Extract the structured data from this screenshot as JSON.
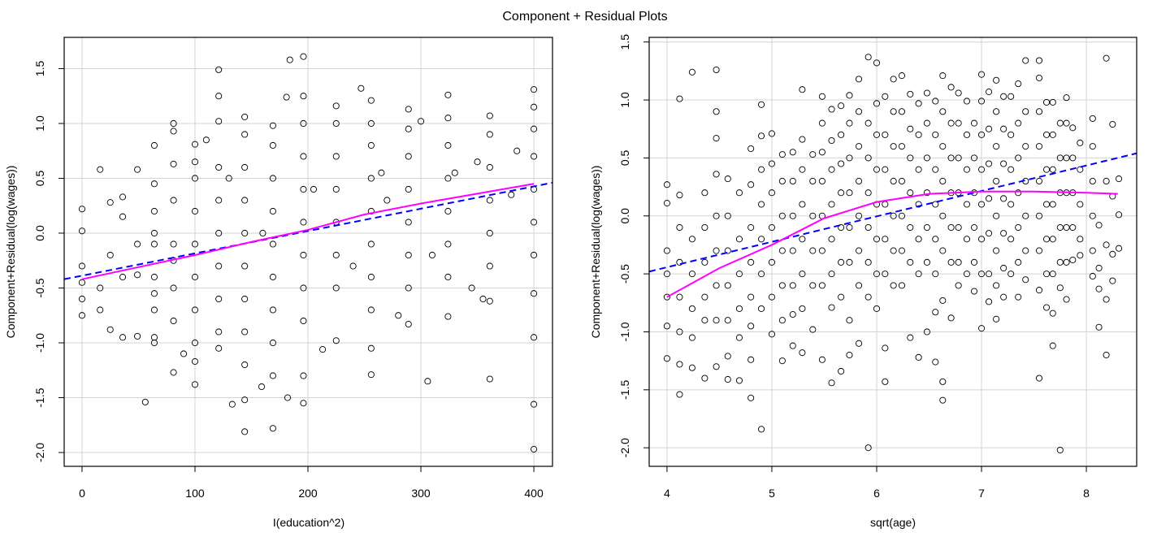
{
  "title": "Component + Residual Plots",
  "colors": {
    "points": "#000000",
    "linear_fit": "#0000ff",
    "smooth_fit": "#ff00ff",
    "grid": "#d3d3d3"
  },
  "chart_data": [
    {
      "type": "scatter",
      "xlabel": "I(education^2)",
      "ylabel": "Component+Residual(log(wages))",
      "xlim": [
        -15.8,
        416.5
      ],
      "ylim": [
        -2.126,
        1.785
      ],
      "xticks": [
        0,
        100,
        200,
        300,
        400
      ],
      "xtick_labels": [
        "0",
        "100",
        "200",
        "300",
        "400"
      ],
      "yticks": [
        -2.0,
        -1.5,
        -1.0,
        -0.5,
        0.0,
        0.5,
        1.0,
        1.5
      ],
      "ytick_labels": [
        "-2.0",
        "-1.5",
        "-1.0",
        "-0.5",
        "0.0",
        "0.5",
        "1.0",
        "1.5"
      ],
      "grid": true,
      "columns": [
        {
          "x": 0,
          "y": [
            -0.75,
            -0.45,
            0.22,
            -0.3,
            0.02,
            -0.6
          ]
        },
        {
          "x": 16,
          "y": [
            0.58,
            -0.5,
            -0.7
          ]
        },
        {
          "x": 25,
          "y": [
            0.28,
            -0.2,
            -0.88
          ]
        },
        {
          "x": 36,
          "y": [
            0.33,
            -0.95,
            -0.4,
            0.15
          ]
        },
        {
          "x": 49,
          "y": [
            0.58,
            -0.94,
            -0.1,
            -0.38
          ]
        },
        {
          "x": 64,
          "y": [
            0.8,
            0.45,
            0.2,
            -0.1,
            -0.4,
            -0.7,
            -0.95,
            -1.0,
            0.0,
            -0.55
          ]
        },
        {
          "x": 81,
          "y": [
            1.0,
            0.63,
            0.3,
            -0.1,
            -0.5,
            -0.8,
            -1.27,
            0.93,
            -0.25
          ]
        },
        {
          "x": 100,
          "y": [
            0.81,
            0.5,
            0.2,
            -0.1,
            -0.4,
            -0.7,
            -1.0,
            -1.38,
            -1.17,
            0.65
          ]
        },
        {
          "x": 121,
          "y": [
            1.49,
            1.25,
            1.02,
            0.6,
            0.3,
            0.0,
            -0.3,
            -0.6,
            -0.9,
            -1.05
          ]
        },
        {
          "x": 144,
          "y": [
            1.06,
            0.9,
            0.6,
            0.3,
            0.0,
            -0.3,
            -0.6,
            -0.9,
            -1.2,
            -1.52,
            -1.81
          ]
        },
        {
          "x": 169,
          "y": [
            0.98,
            0.8,
            0.5,
            0.2,
            -0.1,
            -0.4,
            -0.7,
            -1.0,
            -1.3,
            -1.78
          ]
        },
        {
          "x": 196,
          "y": [
            1.61,
            1.25,
            1.0,
            0.7,
            0.4,
            0.1,
            -0.2,
            -0.5,
            -0.8,
            -1.3,
            -1.55
          ]
        },
        {
          "x": 225,
          "y": [
            1.16,
            1.0,
            0.7,
            0.4,
            0.1,
            -0.2,
            -0.5,
            -0.98
          ]
        },
        {
          "x": 256,
          "y": [
            1.21,
            1.0,
            0.8,
            0.5,
            0.2,
            -0.1,
            -0.4,
            -0.7,
            -1.05,
            -1.29
          ]
        },
        {
          "x": 289,
          "y": [
            1.13,
            0.95,
            0.7,
            0.4,
            0.1,
            -0.2,
            -0.5,
            -0.83
          ]
        },
        {
          "x": 324,
          "y": [
            1.26,
            1.05,
            0.8,
            0.5,
            0.2,
            -0.1,
            -0.4,
            -0.76
          ]
        },
        {
          "x": 361,
          "y": [
            1.07,
            0.9,
            0.6,
            0.3,
            0.0,
            -0.3,
            -0.62,
            -1.33
          ]
        },
        {
          "x": 400,
          "y": [
            1.31,
            1.15,
            0.95,
            0.7,
            0.4,
            0.1,
            -0.2,
            -0.55,
            -0.95,
            -1.56,
            -1.97
          ]
        }
      ],
      "extra_points": [
        [
          56,
          -1.54
        ],
        [
          184,
          1.58
        ],
        [
          181,
          1.24
        ],
        [
          247,
          1.32
        ],
        [
          300,
          1.02
        ],
        [
          306,
          -1.35
        ],
        [
          213,
          -1.06
        ],
        [
          159,
          -1.4
        ],
        [
          133,
          -1.56
        ],
        [
          182,
          -1.5
        ],
        [
          330,
          0.55
        ],
        [
          350,
          0.65
        ],
        [
          380,
          0.35
        ],
        [
          385,
          0.75
        ],
        [
          270,
          0.3
        ],
        [
          240,
          -0.3
        ],
        [
          110,
          0.85
        ],
        [
          130,
          0.5
        ],
        [
          90,
          -1.1
        ],
        [
          160,
          0.0
        ],
        [
          205,
          0.4
        ],
        [
          310,
          -0.2
        ],
        [
          345,
          -0.5
        ],
        [
          355,
          -0.6
        ],
        [
          280,
          -0.75
        ],
        [
          265,
          0.55
        ]
      ],
      "linear_fit": [
        [
          -15.8,
          -0.42
        ],
        [
          416.5,
          0.46
        ]
      ],
      "smooth_fit": [
        [
          0,
          -0.42
        ],
        [
          50,
          -0.31
        ],
        [
          100,
          -0.2
        ],
        [
          150,
          -0.08
        ],
        [
          200,
          0.03
        ],
        [
          250,
          0.17
        ],
        [
          300,
          0.27
        ],
        [
          350,
          0.36
        ],
        [
          400,
          0.45
        ]
      ]
    },
    {
      "type": "scatter",
      "xlabel": "sqrt(age)",
      "ylabel": "Component+Residual(log(wages))",
      "xlim": [
        3.83,
        8.48
      ],
      "ylim": [
        -2.16,
        1.54
      ],
      "xticks": [
        4,
        5,
        6,
        7,
        8
      ],
      "xtick_labels": [
        "4",
        "5",
        "6",
        "7",
        "8"
      ],
      "yticks": [
        -2.0,
        -1.5,
        -1.0,
        -0.5,
        0.0,
        0.5,
        1.0,
        1.5
      ],
      "ytick_labels": [
        "-2.0",
        "-1.5",
        "-1.0",
        "-0.5",
        "0.0",
        "0.5",
        "1.0",
        "1.5"
      ],
      "grid": true,
      "columns": [
        {
          "x": 4.0,
          "y": [
            0.27,
            0.11,
            -0.3,
            -0.5,
            -0.7,
            -0.95,
            -1.23
          ]
        },
        {
          "x": 4.12,
          "y": [
            1.01,
            0.18,
            -0.1,
            -0.4,
            -0.7,
            -1.0,
            -1.28,
            -1.54
          ]
        },
        {
          "x": 4.24,
          "y": [
            1.24,
            -0.2,
            -0.5,
            -0.8,
            -1.05,
            -1.31
          ]
        },
        {
          "x": 4.36,
          "y": [
            0.2,
            -0.1,
            -0.4,
            -0.7,
            -0.9,
            -1.4
          ]
        },
        {
          "x": 4.47,
          "y": [
            1.26,
            0.9,
            0.67,
            0.36,
            0.0,
            -0.3,
            -0.6,
            -0.9,
            -1.3
          ]
        },
        {
          "x": 4.58,
          "y": [
            0.32,
            0.0,
            -0.3,
            -0.6,
            -0.9,
            -1.21,
            -1.41
          ]
        },
        {
          "x": 4.69,
          "y": [
            0.2,
            -0.2,
            -0.5,
            -0.8,
            -1.05,
            -1.42
          ]
        },
        {
          "x": 4.8,
          "y": [
            0.58,
            0.27,
            -0.1,
            -0.4,
            -0.7,
            -0.95,
            -1.24,
            -1.57
          ]
        },
        {
          "x": 4.9,
          "y": [
            0.96,
            0.69,
            0.4,
            0.1,
            -0.2,
            -0.5,
            -0.8,
            -1.84
          ]
        },
        {
          "x": 5.0,
          "y": [
            0.71,
            0.45,
            0.2,
            -0.1,
            -0.4,
            -0.7,
            -1.02
          ]
        },
        {
          "x": 5.1,
          "y": [
            0.53,
            0.3,
            0.0,
            -0.3,
            -0.6,
            -0.9,
            -1.25
          ]
        },
        {
          "x": 5.2,
          "y": [
            0.55,
            0.3,
            0.0,
            -0.3,
            -0.6,
            -0.85,
            -1.12
          ]
        },
        {
          "x": 5.29,
          "y": [
            1.09,
            0.66,
            0.4,
            0.1,
            -0.2,
            -0.5,
            -0.8,
            -1.18
          ]
        },
        {
          "x": 5.39,
          "y": [
            0.53,
            0.3,
            0.0,
            -0.3,
            -0.6,
            -0.98
          ]
        },
        {
          "x": 5.48,
          "y": [
            1.03,
            0.8,
            0.55,
            0.3,
            0.0,
            -0.3,
            -0.6,
            -1.24
          ]
        },
        {
          "x": 5.57,
          "y": [
            0.92,
            0.65,
            0.4,
            0.1,
            -0.2,
            -0.5,
            -0.79,
            -1.44
          ]
        },
        {
          "x": 5.66,
          "y": [
            0.95,
            0.7,
            0.45,
            0.2,
            -0.1,
            -0.4,
            -0.7,
            -1.34
          ]
        },
        {
          "x": 5.74,
          "y": [
            1.04,
            0.8,
            0.5,
            0.2,
            -0.1,
            -0.4,
            -0.9,
            -1.2
          ]
        },
        {
          "x": 5.83,
          "y": [
            1.18,
            0.9,
            0.6,
            0.3,
            0.0,
            -0.3,
            -0.6,
            -1.1
          ]
        },
        {
          "x": 5.92,
          "y": [
            1.37,
            0.8,
            0.5,
            0.2,
            -0.1,
            -0.4,
            -0.7,
            -2.0
          ]
        },
        {
          "x": 6.0,
          "y": [
            1.32,
            0.97,
            0.7,
            0.4,
            0.1,
            -0.2,
            -0.5,
            -0.8
          ]
        },
        {
          "x": 6.08,
          "y": [
            1.03,
            0.7,
            0.4,
            0.1,
            -0.2,
            -0.5,
            -1.14,
            -1.43
          ]
        },
        {
          "x": 6.16,
          "y": [
            1.18,
            0.9,
            0.6,
            0.3,
            0.0,
            -0.3,
            -0.6
          ]
        },
        {
          "x": 6.24,
          "y": [
            1.21,
            0.9,
            0.6,
            0.3,
            0.0,
            -0.3,
            -0.6
          ]
        },
        {
          "x": 6.32,
          "y": [
            1.05,
            0.75,
            0.5,
            0.2,
            -0.1,
            -0.4,
            -1.05
          ]
        },
        {
          "x": 6.4,
          "y": [
            0.97,
            0.7,
            0.4,
            0.1,
            -0.2,
            -0.5,
            -1.22
          ]
        },
        {
          "x": 6.48,
          "y": [
            1.06,
            0.8,
            0.5,
            0.2,
            -0.1,
            -0.4,
            -1.0
          ]
        },
        {
          "x": 6.56,
          "y": [
            0.99,
            0.7,
            0.4,
            0.1,
            -0.2,
            -0.5,
            -0.83,
            -1.26
          ]
        },
        {
          "x": 6.63,
          "y": [
            1.21,
            0.9,
            0.6,
            0.3,
            0.0,
            -0.3,
            -0.73,
            -1.43,
            -1.59
          ]
        },
        {
          "x": 6.71,
          "y": [
            1.11,
            0.8,
            0.5,
            0.2,
            -0.1,
            -0.4,
            -0.88
          ]
        },
        {
          "x": 6.78,
          "y": [
            1.06,
            0.8,
            0.5,
            0.2,
            -0.1,
            -0.4,
            -0.6
          ]
        },
        {
          "x": 6.86,
          "y": [
            0.99,
            0.7,
            0.4,
            0.1,
            -0.2,
            -0.5
          ]
        },
        {
          "x": 6.93,
          "y": [
            0.8,
            0.5,
            0.2,
            -0.1,
            -0.4,
            -0.65
          ]
        },
        {
          "x": 7.0,
          "y": [
            1.22,
            0.99,
            0.7,
            0.4,
            0.1,
            -0.2,
            -0.5,
            -0.97
          ]
        },
        {
          "x": 7.07,
          "y": [
            1.07,
            0.75,
            0.45,
            0.15,
            -0.15,
            -0.5,
            -0.74
          ]
        },
        {
          "x": 7.14,
          "y": [
            1.17,
            0.9,
            0.6,
            0.3,
            0.0,
            -0.3,
            -0.6,
            -0.89
          ]
        },
        {
          "x": 7.21,
          "y": [
            1.03,
            0.75,
            0.45,
            0.15,
            -0.15,
            -0.45,
            -0.7
          ]
        },
        {
          "x": 7.28,
          "y": [
            1.03,
            0.7,
            0.4,
            0.1,
            -0.2,
            -0.5
          ]
        },
        {
          "x": 7.35,
          "y": [
            1.14,
            0.8,
            0.5,
            0.2,
            -0.1,
            -0.4,
            -0.7
          ]
        },
        {
          "x": 7.42,
          "y": [
            1.34,
            0.9,
            0.6,
            0.3,
            0.0,
            -0.3,
            -0.55
          ]
        },
        {
          "x": 7.55,
          "y": [
            1.34,
            1.19,
            0.9,
            0.6,
            0.3,
            0.0,
            -0.3,
            -0.64,
            -1.4
          ]
        },
        {
          "x": 7.62,
          "y": [
            0.98,
            0.7,
            0.4,
            0.1,
            -0.2,
            -0.5,
            -0.79
          ]
        },
        {
          "x": 7.68,
          "y": [
            0.98,
            0.7,
            0.4,
            0.1,
            -0.2,
            -0.5,
            -0.84,
            -1.12
          ]
        },
        {
          "x": 7.75,
          "y": [
            0.8,
            0.5,
            0.2,
            -0.1,
            -0.4,
            -0.62,
            -2.02
          ]
        },
        {
          "x": 7.81,
          "y": [
            1.02,
            0.8,
            0.5,
            0.2,
            -0.1,
            -0.4,
            -0.72
          ]
        },
        {
          "x": 7.87,
          "y": [
            0.76,
            0.5,
            0.2,
            -0.1,
            -0.38
          ]
        },
        {
          "x": 7.94,
          "y": [
            0.63,
            0.4,
            0.1,
            -0.2,
            -0.34
          ]
        },
        {
          "x": 8.06,
          "y": [
            0.84,
            0.6,
            0.3,
            0.0,
            -0.3,
            -0.52
          ]
        },
        {
          "x": 8.12,
          "y": [
            -0.08,
            -0.45,
            -0.63,
            -0.96
          ]
        },
        {
          "x": 8.19,
          "y": [
            1.36,
            0.3,
            -0.25,
            -0.72,
            -1.2
          ]
        },
        {
          "x": 8.25,
          "y": [
            0.79,
            0.17,
            -0.33,
            -0.56
          ]
        },
        {
          "x": 8.31,
          "y": [
            0.32,
            0.01,
            -0.28
          ]
        }
      ],
      "extra_points": [],
      "linear_fit": [
        [
          3.83,
          -0.48
        ],
        [
          8.48,
          0.54
        ]
      ],
      "smooth_fit": [
        [
          4.0,
          -0.7
        ],
        [
          4.5,
          -0.45
        ],
        [
          5.0,
          -0.25
        ],
        [
          5.5,
          -0.02
        ],
        [
          6.0,
          0.12
        ],
        [
          6.5,
          0.19
        ],
        [
          7.0,
          0.21
        ],
        [
          7.5,
          0.21
        ],
        [
          8.0,
          0.2
        ],
        [
          8.3,
          0.19
        ]
      ]
    }
  ]
}
